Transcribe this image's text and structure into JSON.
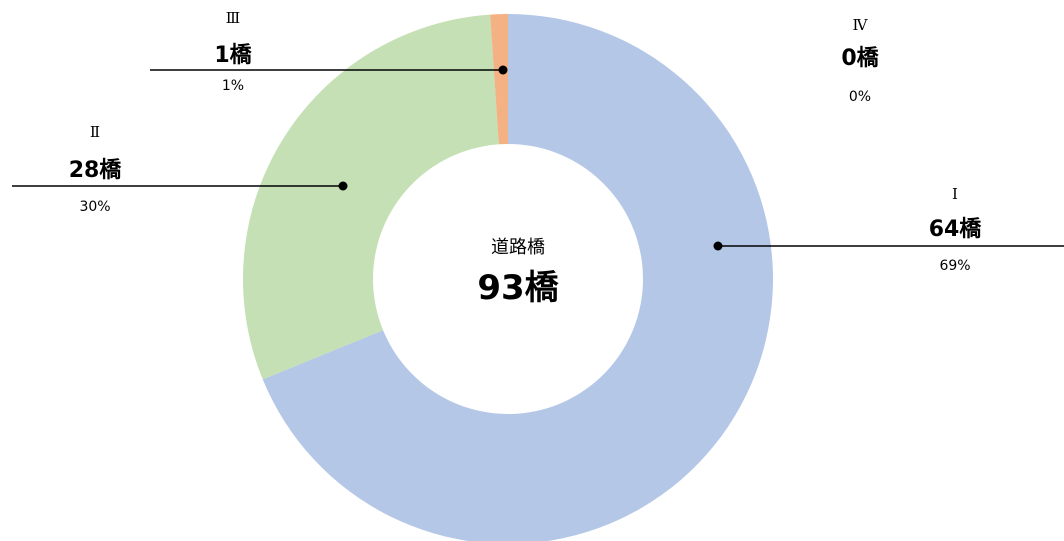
{
  "chart_data": {
    "type": "pie",
    "variant": "donut",
    "center": {
      "label": "道路橋",
      "value": "93橋"
    },
    "segments": [
      {
        "roman": "Ⅰ",
        "count_label": "64橋",
        "pct_label": "69%",
        "value": 64,
        "color": "#b4c7e7"
      },
      {
        "roman": "Ⅱ",
        "count_label": "28橋",
        "pct_label": "30%",
        "value": 28,
        "color": "#c5e0b4"
      },
      {
        "roman": "Ⅲ",
        "count_label": "1橋",
        "pct_label": "1%",
        "value": 1,
        "color": "#f4b183"
      },
      {
        "roman": "Ⅳ",
        "count_label": "0橋",
        "pct_label": "0%",
        "value": 0,
        "color": "#ff0000"
      }
    ],
    "leader_line_color": "#000000"
  }
}
